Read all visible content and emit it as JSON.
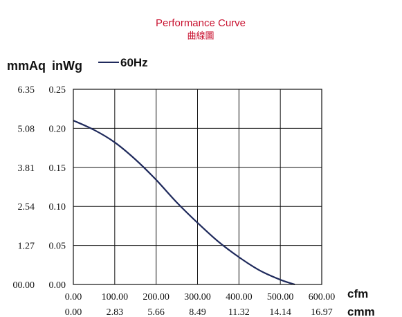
{
  "chart_data": {
    "type": "line",
    "title": "Performance Curve",
    "subtitle": "曲線圖",
    "y_units": {
      "left": "mmAq",
      "right": "inWg"
    },
    "x_units": {
      "primary": "cfm",
      "secondary": "cmm"
    },
    "legend": {
      "label": "60Hz",
      "placement": "top-left",
      "color": "#1f2a5c"
    },
    "grid": true,
    "xlim": [
      0,
      600
    ],
    "ylim": [
      0,
      0.25
    ],
    "x_ticks_cfm": [
      "0.00",
      "100.00",
      "200.00",
      "300.00",
      "400.00",
      "500.00",
      "600.00"
    ],
    "x_ticks_cmm": [
      "0.00",
      "2.83",
      "5.66",
      "8.49",
      "11.32",
      "14.14",
      "16.97"
    ],
    "y_ticks_inwg": [
      "0.00",
      "0.05",
      "0.10",
      "0.15",
      "0.20",
      "0.25"
    ],
    "y_ticks_mmaq": [
      "00.00",
      "1.27",
      "2.54",
      "3.81",
      "5.08",
      "6.35"
    ],
    "series": [
      {
        "name": "60Hz",
        "x": [
          0,
          50,
          100,
          150,
          200,
          250,
          300,
          350,
          400,
          450,
          500,
          535
        ],
        "y": [
          0.21,
          0.198,
          0.182,
          0.16,
          0.134,
          0.105,
          0.079,
          0.055,
          0.035,
          0.018,
          0.006,
          0.0
        ]
      }
    ]
  }
}
